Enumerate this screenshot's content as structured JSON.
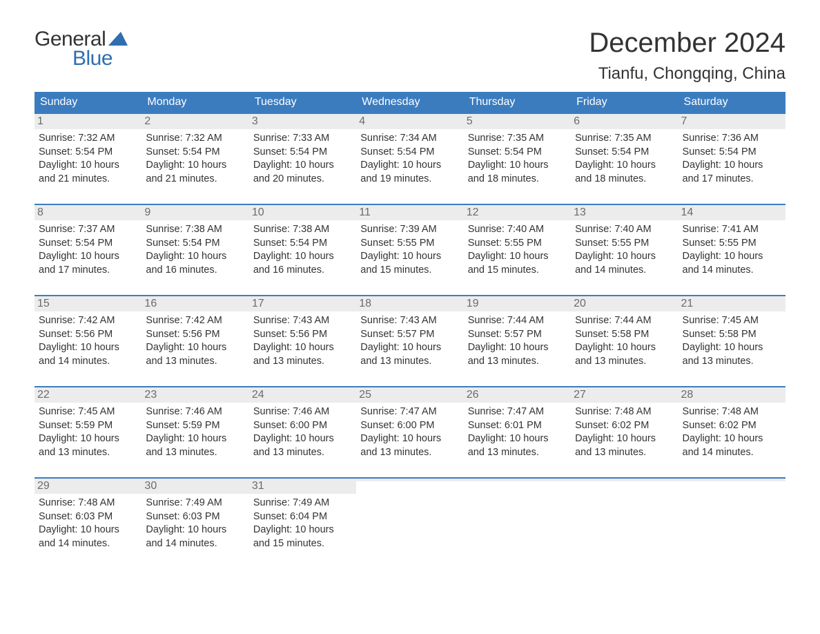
{
  "brand": {
    "word1": "General",
    "word2": "Blue",
    "logo_color": "#2f6eb0",
    "text_color_primary": "#333333"
  },
  "header": {
    "month_title": "December 2024",
    "location": "Tianfu, Chongqing, China"
  },
  "calendar": {
    "header_bg": "#3b7cbf",
    "header_text_color": "#ffffff",
    "row_border_color": "#3b7cbf",
    "daynum_bg": "#ececec",
    "daynum_color": "#6b6b6b",
    "body_text_color": "#333333",
    "day_names": [
      "Sunday",
      "Monday",
      "Tuesday",
      "Wednesday",
      "Thursday",
      "Friday",
      "Saturday"
    ],
    "weeks": [
      [
        {
          "num": "1",
          "sunrise": "Sunrise: 7:32 AM",
          "sunset": "Sunset: 5:54 PM",
          "daylight1": "Daylight: 10 hours",
          "daylight2": "and 21 minutes."
        },
        {
          "num": "2",
          "sunrise": "Sunrise: 7:32 AM",
          "sunset": "Sunset: 5:54 PM",
          "daylight1": "Daylight: 10 hours",
          "daylight2": "and 21 minutes."
        },
        {
          "num": "3",
          "sunrise": "Sunrise: 7:33 AM",
          "sunset": "Sunset: 5:54 PM",
          "daylight1": "Daylight: 10 hours",
          "daylight2": "and 20 minutes."
        },
        {
          "num": "4",
          "sunrise": "Sunrise: 7:34 AM",
          "sunset": "Sunset: 5:54 PM",
          "daylight1": "Daylight: 10 hours",
          "daylight2": "and 19 minutes."
        },
        {
          "num": "5",
          "sunrise": "Sunrise: 7:35 AM",
          "sunset": "Sunset: 5:54 PM",
          "daylight1": "Daylight: 10 hours",
          "daylight2": "and 18 minutes."
        },
        {
          "num": "6",
          "sunrise": "Sunrise: 7:35 AM",
          "sunset": "Sunset: 5:54 PM",
          "daylight1": "Daylight: 10 hours",
          "daylight2": "and 18 minutes."
        },
        {
          "num": "7",
          "sunrise": "Sunrise: 7:36 AM",
          "sunset": "Sunset: 5:54 PM",
          "daylight1": "Daylight: 10 hours",
          "daylight2": "and 17 minutes."
        }
      ],
      [
        {
          "num": "8",
          "sunrise": "Sunrise: 7:37 AM",
          "sunset": "Sunset: 5:54 PM",
          "daylight1": "Daylight: 10 hours",
          "daylight2": "and 17 minutes."
        },
        {
          "num": "9",
          "sunrise": "Sunrise: 7:38 AM",
          "sunset": "Sunset: 5:54 PM",
          "daylight1": "Daylight: 10 hours",
          "daylight2": "and 16 minutes."
        },
        {
          "num": "10",
          "sunrise": "Sunrise: 7:38 AM",
          "sunset": "Sunset: 5:54 PM",
          "daylight1": "Daylight: 10 hours",
          "daylight2": "and 16 minutes."
        },
        {
          "num": "11",
          "sunrise": "Sunrise: 7:39 AM",
          "sunset": "Sunset: 5:55 PM",
          "daylight1": "Daylight: 10 hours",
          "daylight2": "and 15 minutes."
        },
        {
          "num": "12",
          "sunrise": "Sunrise: 7:40 AM",
          "sunset": "Sunset: 5:55 PM",
          "daylight1": "Daylight: 10 hours",
          "daylight2": "and 15 minutes."
        },
        {
          "num": "13",
          "sunrise": "Sunrise: 7:40 AM",
          "sunset": "Sunset: 5:55 PM",
          "daylight1": "Daylight: 10 hours",
          "daylight2": "and 14 minutes."
        },
        {
          "num": "14",
          "sunrise": "Sunrise: 7:41 AM",
          "sunset": "Sunset: 5:55 PM",
          "daylight1": "Daylight: 10 hours",
          "daylight2": "and 14 minutes."
        }
      ],
      [
        {
          "num": "15",
          "sunrise": "Sunrise: 7:42 AM",
          "sunset": "Sunset: 5:56 PM",
          "daylight1": "Daylight: 10 hours",
          "daylight2": "and 14 minutes."
        },
        {
          "num": "16",
          "sunrise": "Sunrise: 7:42 AM",
          "sunset": "Sunset: 5:56 PM",
          "daylight1": "Daylight: 10 hours",
          "daylight2": "and 13 minutes."
        },
        {
          "num": "17",
          "sunrise": "Sunrise: 7:43 AM",
          "sunset": "Sunset: 5:56 PM",
          "daylight1": "Daylight: 10 hours",
          "daylight2": "and 13 minutes."
        },
        {
          "num": "18",
          "sunrise": "Sunrise: 7:43 AM",
          "sunset": "Sunset: 5:57 PM",
          "daylight1": "Daylight: 10 hours",
          "daylight2": "and 13 minutes."
        },
        {
          "num": "19",
          "sunrise": "Sunrise: 7:44 AM",
          "sunset": "Sunset: 5:57 PM",
          "daylight1": "Daylight: 10 hours",
          "daylight2": "and 13 minutes."
        },
        {
          "num": "20",
          "sunrise": "Sunrise: 7:44 AM",
          "sunset": "Sunset: 5:58 PM",
          "daylight1": "Daylight: 10 hours",
          "daylight2": "and 13 minutes."
        },
        {
          "num": "21",
          "sunrise": "Sunrise: 7:45 AM",
          "sunset": "Sunset: 5:58 PM",
          "daylight1": "Daylight: 10 hours",
          "daylight2": "and 13 minutes."
        }
      ],
      [
        {
          "num": "22",
          "sunrise": "Sunrise: 7:45 AM",
          "sunset": "Sunset: 5:59 PM",
          "daylight1": "Daylight: 10 hours",
          "daylight2": "and 13 minutes."
        },
        {
          "num": "23",
          "sunrise": "Sunrise: 7:46 AM",
          "sunset": "Sunset: 5:59 PM",
          "daylight1": "Daylight: 10 hours",
          "daylight2": "and 13 minutes."
        },
        {
          "num": "24",
          "sunrise": "Sunrise: 7:46 AM",
          "sunset": "Sunset: 6:00 PM",
          "daylight1": "Daylight: 10 hours",
          "daylight2": "and 13 minutes."
        },
        {
          "num": "25",
          "sunrise": "Sunrise: 7:47 AM",
          "sunset": "Sunset: 6:00 PM",
          "daylight1": "Daylight: 10 hours",
          "daylight2": "and 13 minutes."
        },
        {
          "num": "26",
          "sunrise": "Sunrise: 7:47 AM",
          "sunset": "Sunset: 6:01 PM",
          "daylight1": "Daylight: 10 hours",
          "daylight2": "and 13 minutes."
        },
        {
          "num": "27",
          "sunrise": "Sunrise: 7:48 AM",
          "sunset": "Sunset: 6:02 PM",
          "daylight1": "Daylight: 10 hours",
          "daylight2": "and 13 minutes."
        },
        {
          "num": "28",
          "sunrise": "Sunrise: 7:48 AM",
          "sunset": "Sunset: 6:02 PM",
          "daylight1": "Daylight: 10 hours",
          "daylight2": "and 14 minutes."
        }
      ],
      [
        {
          "num": "29",
          "sunrise": "Sunrise: 7:48 AM",
          "sunset": "Sunset: 6:03 PM",
          "daylight1": "Daylight: 10 hours",
          "daylight2": "and 14 minutes."
        },
        {
          "num": "30",
          "sunrise": "Sunrise: 7:49 AM",
          "sunset": "Sunset: 6:03 PM",
          "daylight1": "Daylight: 10 hours",
          "daylight2": "and 14 minutes."
        },
        {
          "num": "31",
          "sunrise": "Sunrise: 7:49 AM",
          "sunset": "Sunset: 6:04 PM",
          "daylight1": "Daylight: 10 hours",
          "daylight2": "and 15 minutes."
        },
        {
          "empty": true
        },
        {
          "empty": true
        },
        {
          "empty": true
        },
        {
          "empty": true
        }
      ]
    ]
  }
}
